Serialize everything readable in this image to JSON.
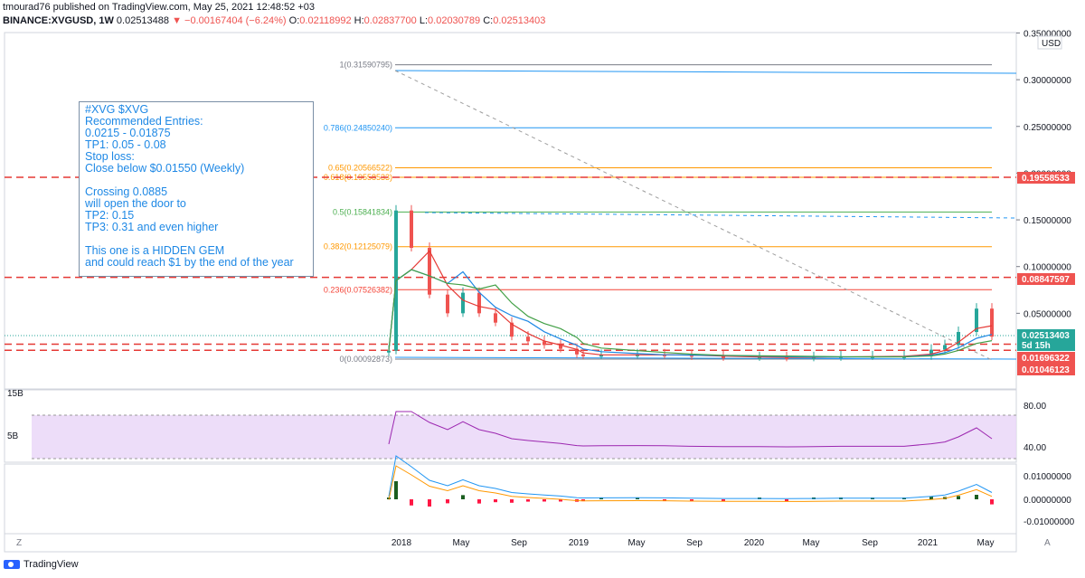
{
  "header": {
    "line1": "tmourad76 published on TradingView.com, May 25, 2021 12:48:52 +03",
    "symbol": "BINANCE:XVGUSD, 1W",
    "price": "0.02513488",
    "change_arrow": "▼",
    "change": "−0.00167404 (−6.24%)",
    "o_label": "O:",
    "o": "0.02118992",
    "h_label": "H:",
    "h": "0.02837700",
    "l_label": "L:",
    "l": "0.02030789",
    "c_label": "C:",
    "c": "0.02513403"
  },
  "colors": {
    "up": "#26a69a",
    "down": "#ef5350",
    "accent": "#1e88e5",
    "rsi_fill": "#e9d5f7",
    "macd_up": "#1b5e20",
    "macd_down": "#ff1744"
  },
  "annotation": {
    "lines": [
      "#XVG $XVG",
      "Recommended Entries:",
      "0.0215 - 0.01875",
      "TP1: 0.05 - 0.08",
      "Stop loss:",
      "Close below $0.01550 (Weekly)",
      "",
      "Crossing 0.0885",
      "will open the door to",
      "TP2: 0.15",
      "TP3: 0.31  and even higher",
      "",
      "This one is a HIDDEN GEM",
      "and could reach $1 by the end of the year"
    ]
  },
  "axis": {
    "currency": "USD",
    "price_ticks": [
      "0.35000000",
      "0.30000000",
      "0.25000000",
      "0.20000000",
      "0.15000000",
      "0.10000000",
      "0.05000000"
    ],
    "price_labels": [
      {
        "text": "0.19558533",
        "color": "#ef5350"
      },
      {
        "text": "0.08847597",
        "color": "#ef5350"
      },
      {
        "text": "0.02513403",
        "color": "#26a69a"
      },
      {
        "text": "5d 15h",
        "color": "#26a69a"
      },
      {
        "text": "0.01696322",
        "color": "#ef5350"
      },
      {
        "text": "0.01046123",
        "color": "#ef5350"
      }
    ],
    "volume_ticks": [
      "15B",
      "5B"
    ],
    "rsi_ticks": [
      "80.00",
      "40.00"
    ],
    "macd_ticks": [
      "0.01000000",
      "0.00000000",
      "-0.01000000"
    ],
    "time_ticks": [
      "2018",
      "May",
      "Sep",
      "2019",
      "May",
      "Sep",
      "2020",
      "May",
      "Sep",
      "2021",
      "May"
    ],
    "corner_left": "Z",
    "corner_right": "A"
  },
  "fib_levels": [
    {
      "label": "1(0.31590795)",
      "value": 0.31590795,
      "color": "#787b86"
    },
    {
      "label": "0.786(0.24850240)",
      "value": 0.2485024,
      "color": "#2196f3"
    },
    {
      "label": "0.65(0.20566522)",
      "value": 0.20566522,
      "color": "#ff9800"
    },
    {
      "label": "0.618(0.19558533)",
      "value": 0.19558533,
      "color": "#ff9800"
    },
    {
      "label": "0.5(0.15841834)",
      "value": 0.15841834,
      "color": "#4caf50"
    },
    {
      "label": "0.382(0.12125079)",
      "value": 0.12125079,
      "color": "#ff9800"
    },
    {
      "label": "0.236(0.07526382)",
      "value": 0.07526382,
      "color": "#f44336"
    },
    {
      "label": "0(0.00092873)",
      "value": 0.00092873,
      "color": "#787b86"
    }
  ],
  "horizontal_lines": [
    0.19558533,
    0.08847597,
    0.01696322,
    0.01046123
  ],
  "footer": {
    "brand": "TradingView"
  },
  "chart_data": {
    "type": "line",
    "title": "BINANCE:XVGUSD, 1W",
    "ylabel": "USD",
    "ylim": [
      0,
      0.35
    ],
    "x": [
      "2017-12",
      "2018-01",
      "2018-02",
      "2018-03",
      "2018-04",
      "2018-05",
      "2018-06",
      "2018-07",
      "2018-08",
      "2018-09",
      "2018-10",
      "2018-11",
      "2018-12",
      "2019-01",
      "2019-03",
      "2019-05",
      "2019-07",
      "2019-09",
      "2019-11",
      "2020-01",
      "2020-03",
      "2020-05",
      "2020-07",
      "2020-09",
      "2020-11",
      "2021-01",
      "2021-02",
      "2021-03",
      "2021-04",
      "2021-05"
    ],
    "series": [
      {
        "values": [
          0.01,
          0.16,
          0.12,
          0.07,
          0.05,
          0.072,
          0.05,
          0.04,
          0.025,
          0.02,
          0.016,
          0.012,
          0.006,
          0.005,
          0.0055,
          0.006,
          0.0055,
          0.004,
          0.003,
          0.003,
          0.0025,
          0.003,
          0.004,
          0.004,
          0.004,
          0.011,
          0.016,
          0.03,
          0.055,
          0.025
        ]
      }
    ]
  }
}
